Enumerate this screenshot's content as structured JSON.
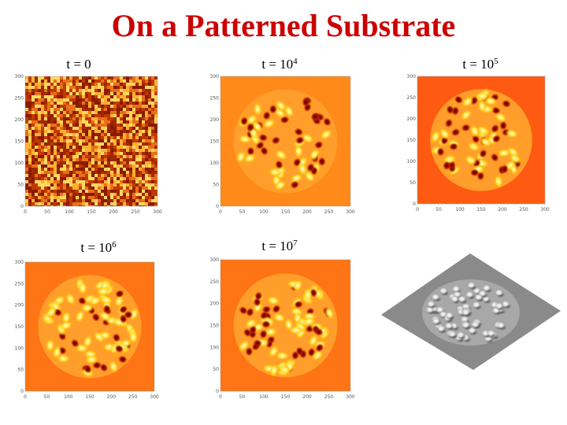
{
  "title": "On a Patterned Substrate",
  "axis_ticks": [
    0,
    50,
    100,
    150,
    200,
    250,
    300
  ],
  "panels": [
    {
      "label": "t = 0"
    },
    {
      "label": "t = 10",
      "exponent": "4"
    },
    {
      "label": "t = 10",
      "exponent": "5"
    },
    {
      "label": "t = 10",
      "exponent": "6"
    },
    {
      "label": "t = 10",
      "exponent": "7"
    }
  ]
}
